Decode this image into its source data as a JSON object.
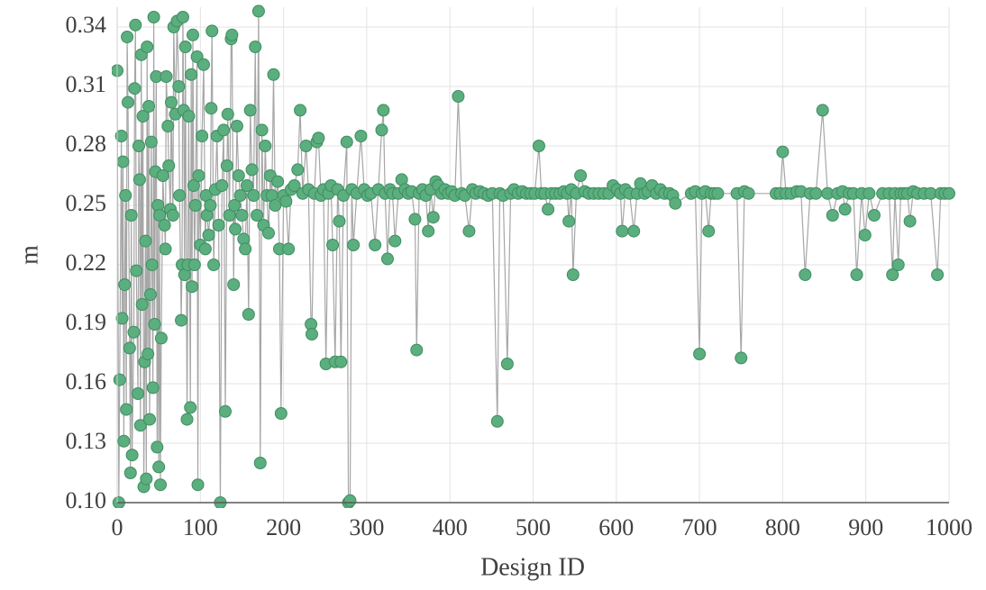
{
  "chart_data": {
    "type": "line",
    "x_label": "Design ID",
    "y_label": "m",
    "color": "#5bae7e",
    "marker_edge_color": "#3f8d60",
    "line_color": "#a6a6a6",
    "grid": true,
    "xlim": [
      0,
      1000
    ],
    "ylim": [
      0.1,
      0.35
    ],
    "xticks": [
      0,
      100,
      200,
      300,
      400,
      500,
      600,
      700,
      800,
      900,
      1000
    ],
    "yticks": [
      {
        "value": 0.1,
        "label": "0.10"
      },
      0.13,
      0.16,
      0.19,
      0.22,
      0.25,
      0.28,
      0.31,
      0.34
    ],
    "x": [
      0,
      2,
      3,
      5,
      6,
      7,
      8,
      9,
      10,
      11,
      12,
      13,
      15,
      16,
      17,
      18,
      20,
      21,
      22,
      23,
      25,
      26,
      27,
      28,
      29,
      30,
      31,
      32,
      33,
      34,
      35,
      36,
      37,
      38,
      39,
      40,
      41,
      42,
      43,
      44,
      45,
      46,
      47,
      48,
      49,
      50,
      51,
      52,
      53,
      55,
      57,
      58,
      59,
      61,
      62,
      64,
      65,
      67,
      68,
      70,
      72,
      74,
      75,
      77,
      78,
      79,
      80,
      81,
      82,
      84,
      85,
      86,
      88,
      89,
      90,
      91,
      92,
      93,
      94,
      96,
      97,
      98,
      100,
      102,
      104,
      106,
      107,
      108,
      110,
      112,
      113,
      114,
      116,
      118,
      120,
      122,
      124,
      126,
      128,
      130,
      132,
      133,
      135,
      137,
      138,
      140,
      141,
      142,
      144,
      146,
      148,
      150,
      152,
      154,
      156,
      158,
      160,
      162,
      164,
      166,
      168,
      170,
      172,
      174,
      176,
      178,
      180,
      182,
      184,
      186,
      188,
      190,
      193,
      195,
      197,
      200,
      203,
      206,
      209,
      213,
      217,
      220,
      223,
      227,
      230,
      233,
      234,
      237,
      240,
      242,
      245,
      248,
      251,
      254,
      257,
      259,
      262,
      265,
      267,
      269,
      272,
      276,
      278,
      280,
      282,
      284,
      288,
      293,
      297,
      301,
      305,
      310,
      314,
      318,
      320,
      322,
      325,
      328,
      331,
      334,
      338,
      342,
      346,
      350,
      354,
      358,
      360,
      363,
      367,
      371,
      374,
      377,
      380,
      383,
      386,
      390,
      394,
      398,
      402,
      406,
      410,
      414,
      418,
      423,
      427,
      431,
      436,
      441,
      446,
      451,
      457,
      460,
      464,
      469,
      473,
      477,
      482,
      487,
      492,
      497,
      502,
      507,
      510,
      514,
      518,
      522,
      527,
      532,
      537,
      541,
      543,
      546,
      548,
      552,
      557,
      562,
      567,
      573,
      579,
      585,
      591,
      596,
      601,
      605,
      607,
      611,
      616,
      621,
      625,
      629,
      634,
      638,
      643,
      648,
      653,
      658,
      664,
      668,
      671,
      690,
      695,
      700,
      703,
      707,
      711,
      714,
      718,
      722,
      745,
      750,
      754,
      759,
      792,
      797,
      800,
      804,
      810,
      817,
      822,
      827,
      833,
      840,
      848,
      854,
      860,
      866,
      872,
      875,
      880,
      885,
      889,
      895,
      899,
      904,
      910,
      920,
      928,
      932,
      935,
      939,
      942,
      946,
      950,
      953,
      957,
      962,
      970,
      978,
      986,
      990,
      995,
      1000
    ],
    "values": [
      0.318,
      0.1,
      0.162,
      0.285,
      0.193,
      0.272,
      0.131,
      0.21,
      0.255,
      0.147,
      0.335,
      0.302,
      0.178,
      0.115,
      0.245,
      0.124,
      0.186,
      0.309,
      0.341,
      0.217,
      0.155,
      0.28,
      0.263,
      0.139,
      0.326,
      0.2,
      0.295,
      0.108,
      0.171,
      0.232,
      0.112,
      0.33,
      0.175,
      0.3,
      0.142,
      0.205,
      0.282,
      0.22,
      0.158,
      0.345,
      0.19,
      0.267,
      0.315,
      0.128,
      0.25,
      0.118,
      0.245,
      0.109,
      0.183,
      0.265,
      0.24,
      0.228,
      0.315,
      0.29,
      0.27,
      0.248,
      0.302,
      0.245,
      0.34,
      0.296,
      0.343,
      0.31,
      0.255,
      0.192,
      0.22,
      0.345,
      0.298,
      0.215,
      0.33,
      0.142,
      0.22,
      0.295,
      0.148,
      0.316,
      0.209,
      0.336,
      0.26,
      0.22,
      0.25,
      0.325,
      0.109,
      0.265,
      0.23,
      0.285,
      0.321,
      0.228,
      0.255,
      0.245,
      0.235,
      0.25,
      0.299,
      0.338,
      0.22,
      0.258,
      0.285,
      0.24,
      0.1,
      0.26,
      0.288,
      0.146,
      0.27,
      0.296,
      0.245,
      0.334,
      0.336,
      0.21,
      0.25,
      0.238,
      0.29,
      0.265,
      0.255,
      0.245,
      0.233,
      0.228,
      0.26,
      0.195,
      0.298,
      0.268,
      0.255,
      0.33,
      0.245,
      0.348,
      0.12,
      0.288,
      0.24,
      0.28,
      0.255,
      0.236,
      0.265,
      0.255,
      0.316,
      0.25,
      0.262,
      0.228,
      0.145,
      0.255,
      0.252,
      0.228,
      0.258,
      0.26,
      0.268,
      0.298,
      0.256,
      0.28,
      0.258,
      0.19,
      0.185,
      0.256,
      0.282,
      0.284,
      0.255,
      0.258,
      0.17,
      0.256,
      0.26,
      0.23,
      0.171,
      0.258,
      0.242,
      0.171,
      0.255,
      0.282,
      0.1,
      0.101,
      0.258,
      0.23,
      0.256,
      0.285,
      0.258,
      0.255,
      0.256,
      0.23,
      0.258,
      0.288,
      0.298,
      0.256,
      0.223,
      0.258,
      0.256,
      0.232,
      0.256,
      0.263,
      0.258,
      0.256,
      0.257,
      0.243,
      0.177,
      0.256,
      0.258,
      0.255,
      0.237,
      0.258,
      0.244,
      0.262,
      0.26,
      0.256,
      0.258,
      0.256,
      0.257,
      0.255,
      0.305,
      0.256,
      0.255,
      0.237,
      0.258,
      0.256,
      0.257,
      0.256,
      0.255,
      0.256,
      0.141,
      0.256,
      0.255,
      0.17,
      0.256,
      0.258,
      0.256,
      0.257,
      0.256,
      0.256,
      0.256,
      0.28,
      0.256,
      0.256,
      0.248,
      0.256,
      0.256,
      0.256,
      0.257,
      0.256,
      0.242,
      0.258,
      0.215,
      0.256,
      0.265,
      0.257,
      0.256,
      0.256,
      0.256,
      0.256,
      0.256,
      0.26,
      0.258,
      0.256,
      0.237,
      0.258,
      0.256,
      0.237,
      0.256,
      0.261,
      0.256,
      0.257,
      0.26,
      0.256,
      0.258,
      0.256,
      0.256,
      0.255,
      0.251,
      0.256,
      0.257,
      0.175,
      0.256,
      0.257,
      0.237,
      0.256,
      0.256,
      0.256,
      0.256,
      0.173,
      0.257,
      0.256,
      0.256,
      0.256,
      0.277,
      0.256,
      0.256,
      0.257,
      0.257,
      0.215,
      0.256,
      0.256,
      0.298,
      0.256,
      0.245,
      0.256,
      0.257,
      0.248,
      0.256,
      0.256,
      0.215,
      0.256,
      0.235,
      0.256,
      0.245,
      0.256,
      0.256,
      0.215,
      0.256,
      0.22,
      0.256,
      0.256,
      0.256,
      0.242,
      0.257,
      0.256,
      0.256,
      0.256,
      0.215,
      0.256,
      0.256,
      0.256
    ]
  }
}
